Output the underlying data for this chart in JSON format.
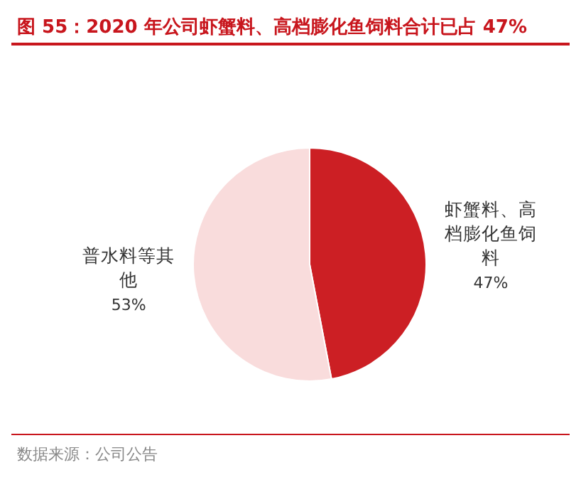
{
  "chart_data": {
    "type": "pie",
    "title": "图 55：2020 年公司虾蟹料、高档膨化鱼饲料合计已占 47%",
    "categories": [
      "虾蟹料、高档膨化鱼饲料",
      "普水料等其他"
    ],
    "values": [
      47,
      53
    ],
    "colors": [
      "#cc1f24",
      "#f9dcdc"
    ],
    "value_labels": [
      "47%",
      "53%"
    ],
    "legend": false,
    "annotations": [
      "数据来源：公司公告"
    ]
  }
}
